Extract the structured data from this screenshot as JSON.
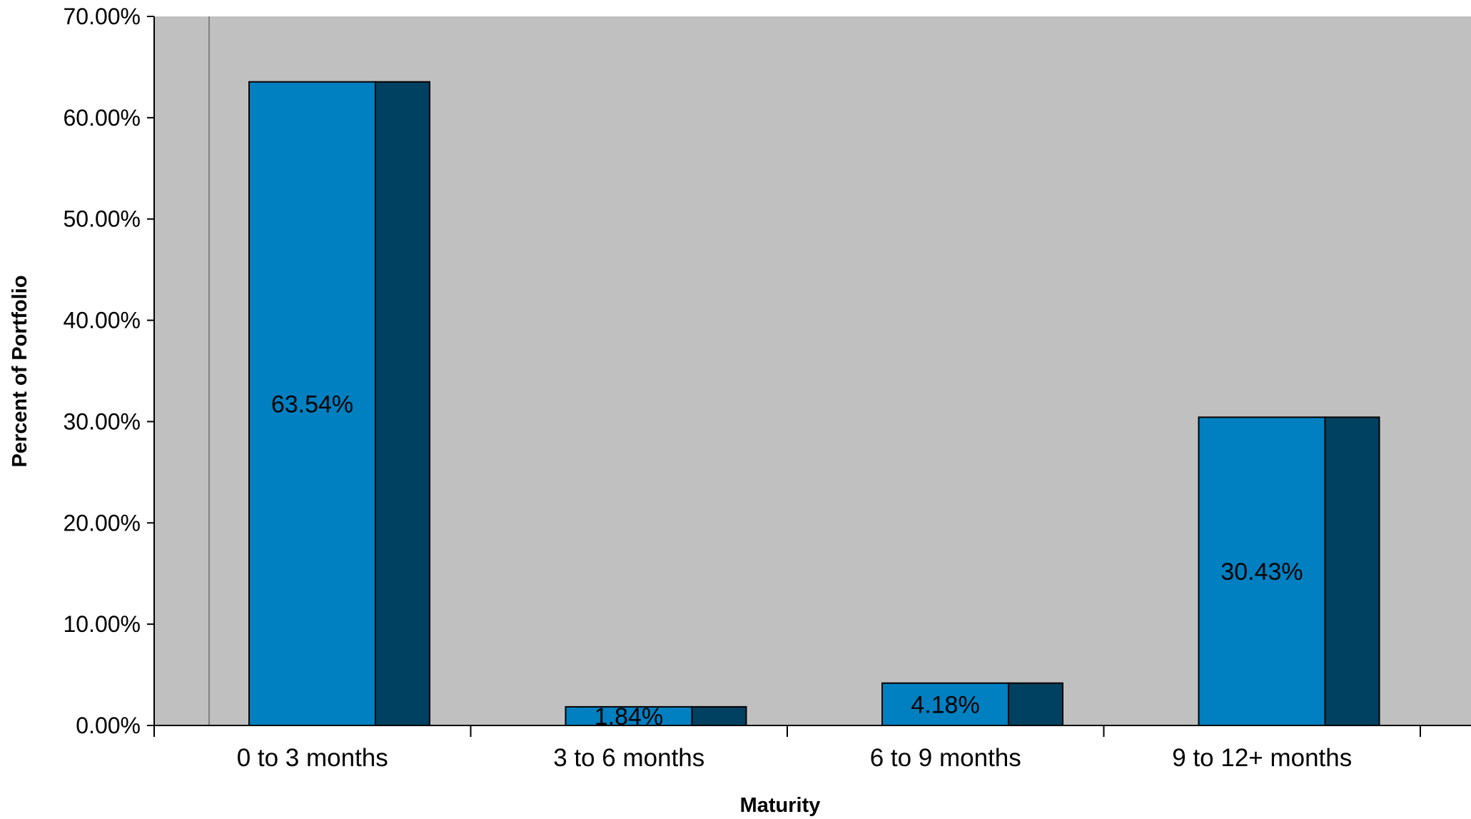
{
  "chart_data": {
    "type": "bar",
    "title": "",
    "xlabel": "Maturity",
    "ylabel": "Percent of Portfolio",
    "categories": [
      "0 to 3 months",
      "3 to 6 months",
      "6 to 9 months",
      "9 to 12+ months"
    ],
    "values": [
      63.54,
      1.84,
      4.18,
      30.43
    ],
    "data_labels": [
      "63.54%",
      "1.84%",
      "4.18%",
      "30.43%"
    ],
    "ylim": [
      0,
      70
    ],
    "yticks": [
      0,
      10,
      20,
      30,
      40,
      50,
      60,
      70
    ],
    "ytick_labels": [
      "0.00%",
      "10.00%",
      "20.00%",
      "30.00%",
      "40.00%",
      "50.00%",
      "60.00%",
      "70.00%"
    ],
    "grid": false,
    "legend": "none",
    "bar_style": "3d",
    "colors": {
      "plot_background": "#c0c0c0",
      "bar_front": "#0080c0",
      "bar_side": "#004060",
      "bar_outline": "#000000",
      "axis": "#000000"
    }
  }
}
